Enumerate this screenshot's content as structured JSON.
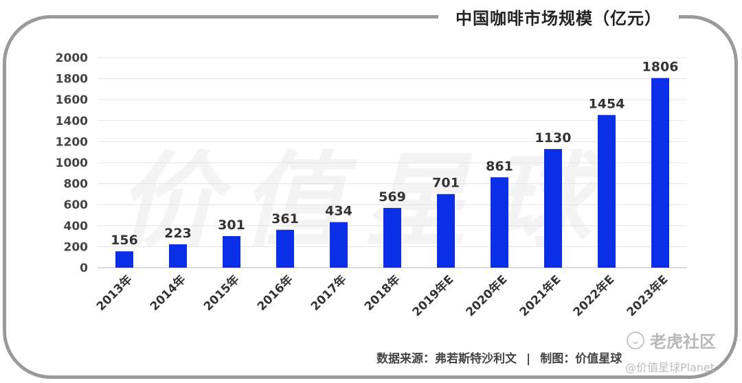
{
  "chart_data": {
    "type": "bar",
    "title": "中国咖啡市场规模（亿元）",
    "categories": [
      "2013年",
      "2014年",
      "2015年",
      "2016年",
      "2017年",
      "2018年",
      "2019年E",
      "2020年E",
      "2021年E",
      "2022年E",
      "2023年E"
    ],
    "values": [
      156,
      223,
      301,
      361,
      434,
      569,
      701,
      861,
      1130,
      1454,
      1806
    ],
    "yticks": [
      0,
      200,
      400,
      600,
      800,
      1000,
      1200,
      1400,
      1600,
      1800,
      2000
    ],
    "ylim": [
      0,
      2000
    ],
    "bar_color": "#0a2fe6",
    "grid": true,
    "xlabel": "",
    "ylabel": ""
  },
  "source": {
    "text": "数据来源：弗若斯特沙利文",
    "separator": "|",
    "credit": "制图：价值星球"
  },
  "watermarks": {
    "center": "价值星球",
    "brand": "老虎社区",
    "small": "@价值星球Planet"
  }
}
